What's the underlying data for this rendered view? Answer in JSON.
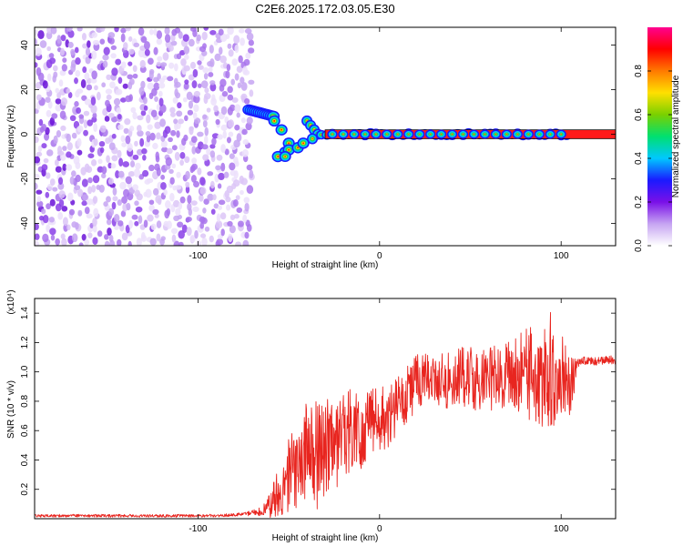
{
  "title": "C2E6.2025.172.03.05.E30",
  "chart_data": [
    {
      "type": "heatmap",
      "xlabel": "Height of straight line (km)",
      "ylabel": "Frequency (Hz)",
      "xlim": [
        -190,
        130
      ],
      "ylim": [
        -50,
        48
      ],
      "x_ticks": [
        -100,
        0,
        100
      ],
      "y_ticks": [
        -40,
        -20,
        0,
        20,
        40
      ],
      "colorbar": {
        "label": "Normalized spectral amplitude",
        "range": [
          0,
          1
        ],
        "ticks": [
          "0.0",
          "0.2",
          "0.4",
          "0.6",
          "0.8"
        ],
        "colors": [
          "#ffffff",
          "#c6a4f2",
          "#7a10e8",
          "#1a1aff",
          "#00c8ff",
          "#00e070",
          "#7ad000",
          "#ffe000",
          "#ff7a00",
          "#ff0000",
          "#ff0090"
        ]
      },
      "features": {
        "noise_region_x": [
          -190,
          -70
        ],
        "ridge_start": [
          -72,
          11
        ],
        "ridge_branch_low": [
          -52,
          -10
        ],
        "ridge_center_frequency": 0,
        "ridge_end_x": 103,
        "ridge_line_band": [
          -2,
          2
        ]
      }
    },
    {
      "type": "line",
      "xlabel": "Height of straight line (km)",
      "ylabel": "SNR (10 * v/v)",
      "scale_label": "(x10⁴)",
      "xlim": [
        -190,
        130
      ],
      "ylim": [
        0,
        1.5
      ],
      "x_ticks": [
        -100,
        0,
        100
      ],
      "y_ticks": [
        "0.2",
        "0.4",
        "0.6",
        "0.8",
        "1.0",
        "1.2",
        "1.4"
      ],
      "series": [
        {
          "color": "#e8251f",
          "x": [
            -190,
            -170,
            -150,
            -130,
            -110,
            -90,
            -75,
            -65,
            -60,
            -55,
            -50,
            -45,
            -40,
            -35,
            -30,
            -25,
            -20,
            -15,
            -10,
            -5,
            0,
            5,
            10,
            15,
            20,
            25,
            30,
            35,
            40,
            45,
            50,
            55,
            60,
            65,
            70,
            75,
            80,
            85,
            90,
            95,
            100,
            105,
            110,
            115,
            120,
            125,
            130
          ],
          "y": [
            0.02,
            0.02,
            0.02,
            0.02,
            0.02,
            0.02,
            0.03,
            0.05,
            0.1,
            0.2,
            0.3,
            0.35,
            0.42,
            0.45,
            0.5,
            0.53,
            0.55,
            0.6,
            0.62,
            0.65,
            0.68,
            0.7,
            0.78,
            0.85,
            0.92,
            0.95,
            0.95,
            0.93,
            0.95,
            0.97,
            0.95,
            0.93,
            0.95,
            0.97,
            1.0,
            1.0,
            1.0,
            0.98,
            1.0,
            1.02,
            1.0,
            0.9,
            1.08,
            1.07,
            1.07,
            1.08,
            1.08
          ],
          "amplitude": [
            0.01,
            0.01,
            0.01,
            0.01,
            0.01,
            0.01,
            0.01,
            0.03,
            0.1,
            0.18,
            0.25,
            0.3,
            0.38,
            0.4,
            0.35,
            0.35,
            0.3,
            0.3,
            0.28,
            0.25,
            0.22,
            0.22,
            0.2,
            0.2,
            0.2,
            0.18,
            0.15,
            0.2,
            0.18,
            0.2,
            0.22,
            0.2,
            0.22,
            0.22,
            0.25,
            0.28,
            0.3,
            0.35,
            0.4,
            0.4,
            0.3,
            0.2,
            0.03,
            0.03,
            0.03,
            0.03,
            0.03
          ]
        }
      ]
    }
  ]
}
